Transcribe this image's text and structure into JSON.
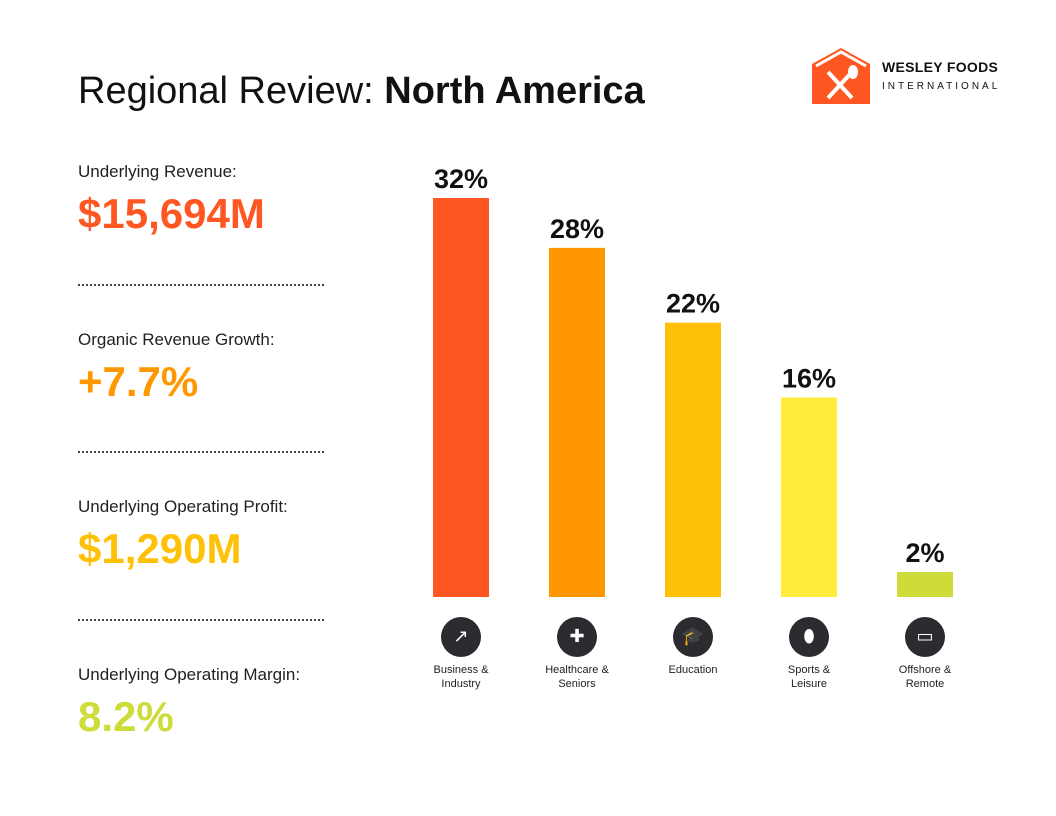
{
  "title": {
    "prefix": "Regional Review: ",
    "bold": "North America"
  },
  "logo": {
    "line1": "WESLEY FOODS",
    "line2": "INTERNATIONAL",
    "color": "#FF5722"
  },
  "metrics": [
    {
      "label": "Underlying Revenue:",
      "value": "$15,694M",
      "color": "#FF5722"
    },
    {
      "label": "Organic Revenue Growth:",
      "value": "+7.7%",
      "color": "#FF9800"
    },
    {
      "label": "Underlying Operating Profit:",
      "value": "$1,290M",
      "color": "#FFC107"
    },
    {
      "label": "Underlying Operating Margin:",
      "value": "8.2%",
      "color": "#CDDC39"
    }
  ],
  "chart_data": {
    "type": "bar",
    "categories": [
      "Business & Industry",
      "Healthcare & Seniors",
      "Education",
      "Sports & Leisure",
      "Offshore & Remote"
    ],
    "values": [
      32,
      28,
      22,
      16,
      2
    ],
    "data_labels": [
      "32%",
      "28%",
      "22%",
      "16%",
      "2%"
    ],
    "colors": [
      "#FF5722",
      "#FF9800",
      "#FFC107",
      "#FFEB3B",
      "#CDDC39"
    ],
    "icons": [
      "growth-chart-icon",
      "medical-bag-icon",
      "graduation-cap-icon",
      "football-icon",
      "laptop-icon"
    ],
    "ylim": [
      0,
      32
    ],
    "grid": false
  }
}
